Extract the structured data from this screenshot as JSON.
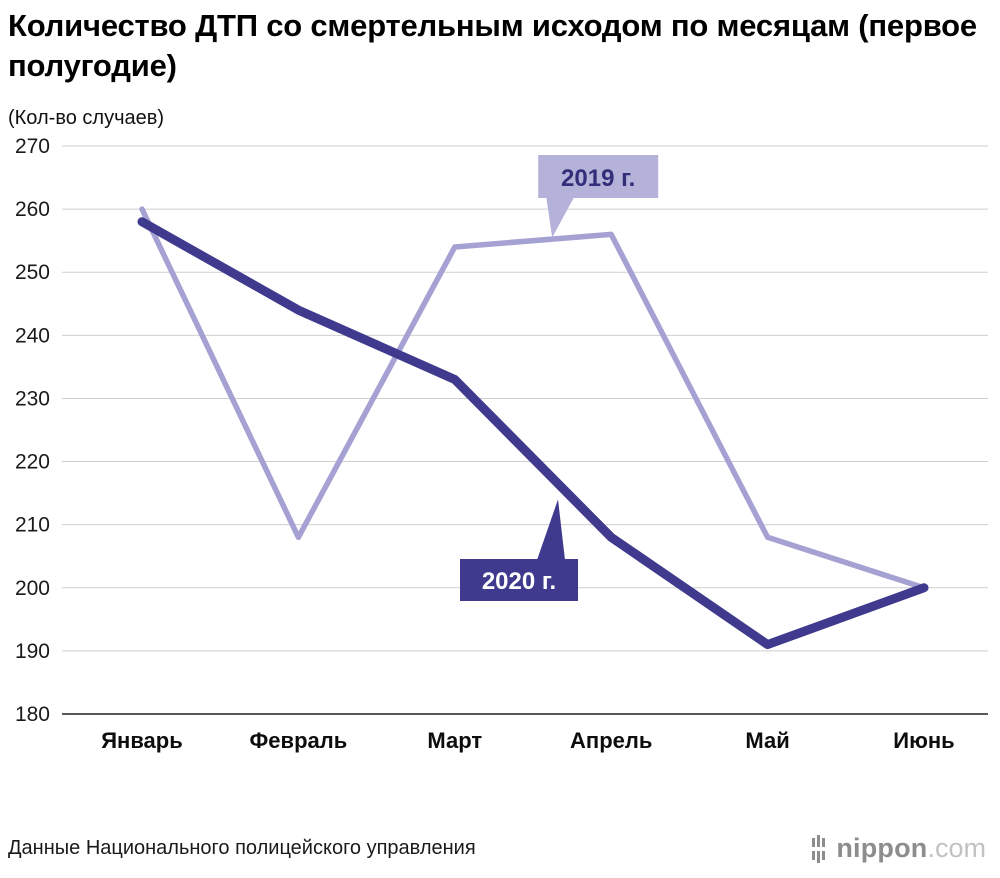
{
  "title": "Количество ДТП со смертельным исходом по месяцам (первое полугодие)",
  "unit_label": "(Кол-во случаев)",
  "source": "Данные Национального полицейского управления",
  "brand": {
    "name": "nippon",
    "tld": ".com"
  },
  "colors": {
    "series_2019": "#a5a2d3",
    "series_2020": "#3f3a8d",
    "grid": "#cfcfcf",
    "axis": "#595959",
    "tick_text": "#1a1a1a",
    "label_2019_bg": "#b5b2da",
    "label_2019_text": "#332e7a",
    "label_2020_bg": "#3f3a8d",
    "label_2020_text": "#ffffff"
  },
  "chart_data": {
    "type": "line",
    "categories": [
      "Январь",
      "Февраль",
      "Март",
      "Апрель",
      "Май",
      "Июнь"
    ],
    "series": [
      {
        "name": "2019 г.",
        "values": [
          260,
          208,
          254,
          256,
          208,
          200
        ]
      },
      {
        "name": "2020 г.",
        "values": [
          258,
          244,
          233,
          208,
          191,
          200
        ]
      }
    ],
    "ylim": [
      180,
      270
    ],
    "ytick_step": 10,
    "grid": true,
    "legend_position": "on-chart annotations"
  }
}
